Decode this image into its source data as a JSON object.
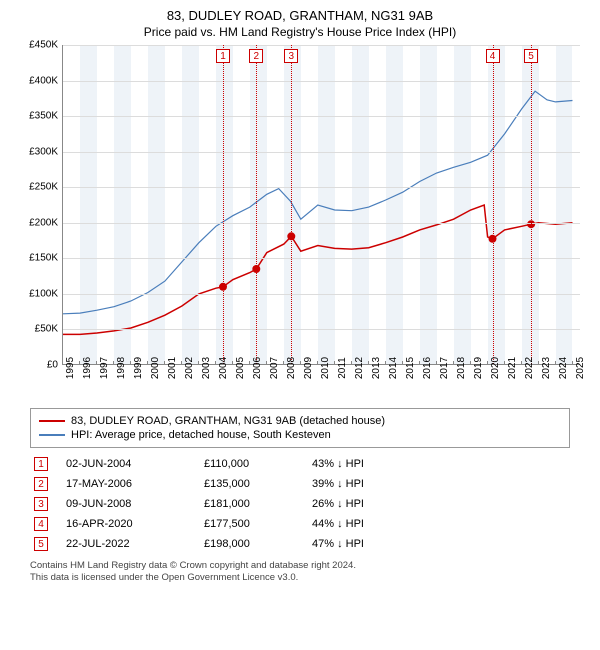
{
  "title": {
    "main": "83, DUDLEY ROAD, GRANTHAM, NG31 9AB",
    "sub": "Price paid vs. HM Land Registry's House Price Index (HPI)"
  },
  "chart": {
    "type": "line",
    "background_color": "#ffffff",
    "band_color": "#eef3f8",
    "grid_color": "#dcdcdc",
    "axis_color": "#888888",
    "label_fontsize": 10,
    "ylim": [
      0,
      450000
    ],
    "ytick_step": 50000,
    "yticks": [
      "£0",
      "£50K",
      "£100K",
      "£150K",
      "£200K",
      "£250K",
      "£300K",
      "£350K",
      "£400K",
      "£450K"
    ],
    "x_years": [
      1995,
      1996,
      1997,
      1998,
      1999,
      2000,
      2001,
      2002,
      2003,
      2004,
      2005,
      2006,
      2007,
      2008,
      2009,
      2010,
      2011,
      2012,
      2013,
      2014,
      2015,
      2016,
      2017,
      2018,
      2019,
      2020,
      2021,
      2022,
      2023,
      2024,
      2025
    ],
    "xlim": [
      1995,
      2025.5
    ],
    "series": [
      {
        "name": "property",
        "label": "83, DUDLEY ROAD, GRANTHAM, NG31 9AB (detached house)",
        "color": "#cc0000",
        "line_width": 1.5,
        "points": [
          [
            1995.0,
            43000
          ],
          [
            1996.0,
            43000
          ],
          [
            1997.0,
            45000
          ],
          [
            1998.0,
            48000
          ],
          [
            1999.0,
            52000
          ],
          [
            2000.0,
            60000
          ],
          [
            2001.0,
            70000
          ],
          [
            2002.0,
            83000
          ],
          [
            2003.0,
            100000
          ],
          [
            2004.0,
            108000
          ],
          [
            2004.42,
            110000
          ],
          [
            2005.0,
            120000
          ],
          [
            2006.0,
            130000
          ],
          [
            2006.38,
            135000
          ],
          [
            2007.0,
            158000
          ],
          [
            2008.0,
            170000
          ],
          [
            2008.44,
            181000
          ],
          [
            2009.0,
            160000
          ],
          [
            2010.0,
            168000
          ],
          [
            2011.0,
            164000
          ],
          [
            2012.0,
            163000
          ],
          [
            2013.0,
            165000
          ],
          [
            2014.0,
            172000
          ],
          [
            2015.0,
            180000
          ],
          [
            2016.0,
            190000
          ],
          [
            2017.0,
            197000
          ],
          [
            2018.0,
            205000
          ],
          [
            2019.0,
            218000
          ],
          [
            2019.8,
            225000
          ],
          [
            2020.0,
            180000
          ],
          [
            2020.29,
            177500
          ],
          [
            2021.0,
            190000
          ],
          [
            2022.0,
            195000
          ],
          [
            2022.56,
            198000
          ],
          [
            2023.0,
            200000
          ],
          [
            2024.0,
            198000
          ],
          [
            2025.0,
            200000
          ]
        ]
      },
      {
        "name": "hpi",
        "label": "HPI: Average price, detached house, South Kesteven",
        "color": "#4a7ebb",
        "line_width": 1.2,
        "points": [
          [
            1995.0,
            72000
          ],
          [
            1996.0,
            73000
          ],
          [
            1997.0,
            77000
          ],
          [
            1998.0,
            82000
          ],
          [
            1999.0,
            90000
          ],
          [
            2000.0,
            102000
          ],
          [
            2001.0,
            118000
          ],
          [
            2002.0,
            145000
          ],
          [
            2003.0,
            172000
          ],
          [
            2004.0,
            195000
          ],
          [
            2005.0,
            210000
          ],
          [
            2006.0,
            222000
          ],
          [
            2007.0,
            240000
          ],
          [
            2007.7,
            248000
          ],
          [
            2008.4,
            230000
          ],
          [
            2009.0,
            205000
          ],
          [
            2010.0,
            225000
          ],
          [
            2011.0,
            218000
          ],
          [
            2012.0,
            217000
          ],
          [
            2013.0,
            222000
          ],
          [
            2014.0,
            232000
          ],
          [
            2015.0,
            243000
          ],
          [
            2016.0,
            258000
          ],
          [
            2017.0,
            270000
          ],
          [
            2018.0,
            278000
          ],
          [
            2019.0,
            285000
          ],
          [
            2020.0,
            295000
          ],
          [
            2021.0,
            325000
          ],
          [
            2022.0,
            360000
          ],
          [
            2022.8,
            385000
          ],
          [
            2023.5,
            373000
          ],
          [
            2024.0,
            370000
          ],
          [
            2025.0,
            372000
          ]
        ]
      }
    ],
    "markers": [
      {
        "n": "1",
        "year": 2004.42
      },
      {
        "n": "2",
        "year": 2006.38
      },
      {
        "n": "3",
        "year": 2008.44
      },
      {
        "n": "4",
        "year": 2020.29
      },
      {
        "n": "5",
        "year": 2022.56
      }
    ],
    "sale_dots": [
      [
        2004.42,
        110000
      ],
      [
        2006.38,
        135000
      ],
      [
        2008.44,
        181000
      ],
      [
        2020.29,
        177500
      ],
      [
        2022.56,
        198000
      ]
    ]
  },
  "sales": [
    {
      "n": "1",
      "date": "02-JUN-2004",
      "price": "£110,000",
      "pct": "43% ↓ HPI"
    },
    {
      "n": "2",
      "date": "17-MAY-2006",
      "price": "£135,000",
      "pct": "39% ↓ HPI"
    },
    {
      "n": "3",
      "date": "09-JUN-2008",
      "price": "£181,000",
      "pct": "26% ↓ HPI"
    },
    {
      "n": "4",
      "date": "16-APR-2020",
      "price": "£177,500",
      "pct": "44% ↓ HPI"
    },
    {
      "n": "5",
      "date": "22-JUL-2022",
      "price": "£198,000",
      "pct": "47% ↓ HPI"
    }
  ],
  "footer": {
    "line1": "Contains HM Land Registry data © Crown copyright and database right 2024.",
    "line2": "This data is licensed under the Open Government Licence v3.0."
  }
}
